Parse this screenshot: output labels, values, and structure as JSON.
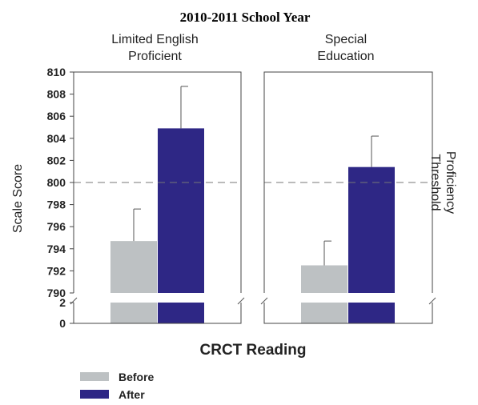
{
  "chart_data": {
    "type": "bar",
    "title": "2010-2011 School Year",
    "xlabel": "CRCT Reading",
    "ylabel": "Scale Score",
    "secondary_label": "Proficiency Threshold",
    "threshold": 800,
    "upper_ylim": [
      790,
      810
    ],
    "upper_ticks": [
      "790",
      "792",
      "794",
      "796",
      "798",
      "800",
      "802",
      "804",
      "806",
      "808",
      "810"
    ],
    "lower_ylim": [
      0,
      2
    ],
    "lower_ticks": [
      "0",
      "2"
    ],
    "axis_break": true,
    "legend_position": "bottom-left",
    "series": [
      {
        "name": "Before",
        "color": "#bdc1c3"
      },
      {
        "name": "After",
        "color": "#2e2785"
      }
    ],
    "panels": [
      {
        "title": "Limited English Proficient",
        "title_lines": [
          "Limited English",
          "Proficient"
        ],
        "bars": [
          {
            "series": "Before",
            "value": 794.7,
            "error": 2.9
          },
          {
            "series": "After",
            "value": 804.9,
            "error": 3.8
          }
        ]
      },
      {
        "title": "Special Education",
        "title_lines": [
          "Special",
          "Education"
        ],
        "bars": [
          {
            "series": "Before",
            "value": 792.5,
            "error": 2.2
          },
          {
            "series": "After",
            "value": 801.4,
            "error": 2.8
          }
        ]
      }
    ]
  }
}
